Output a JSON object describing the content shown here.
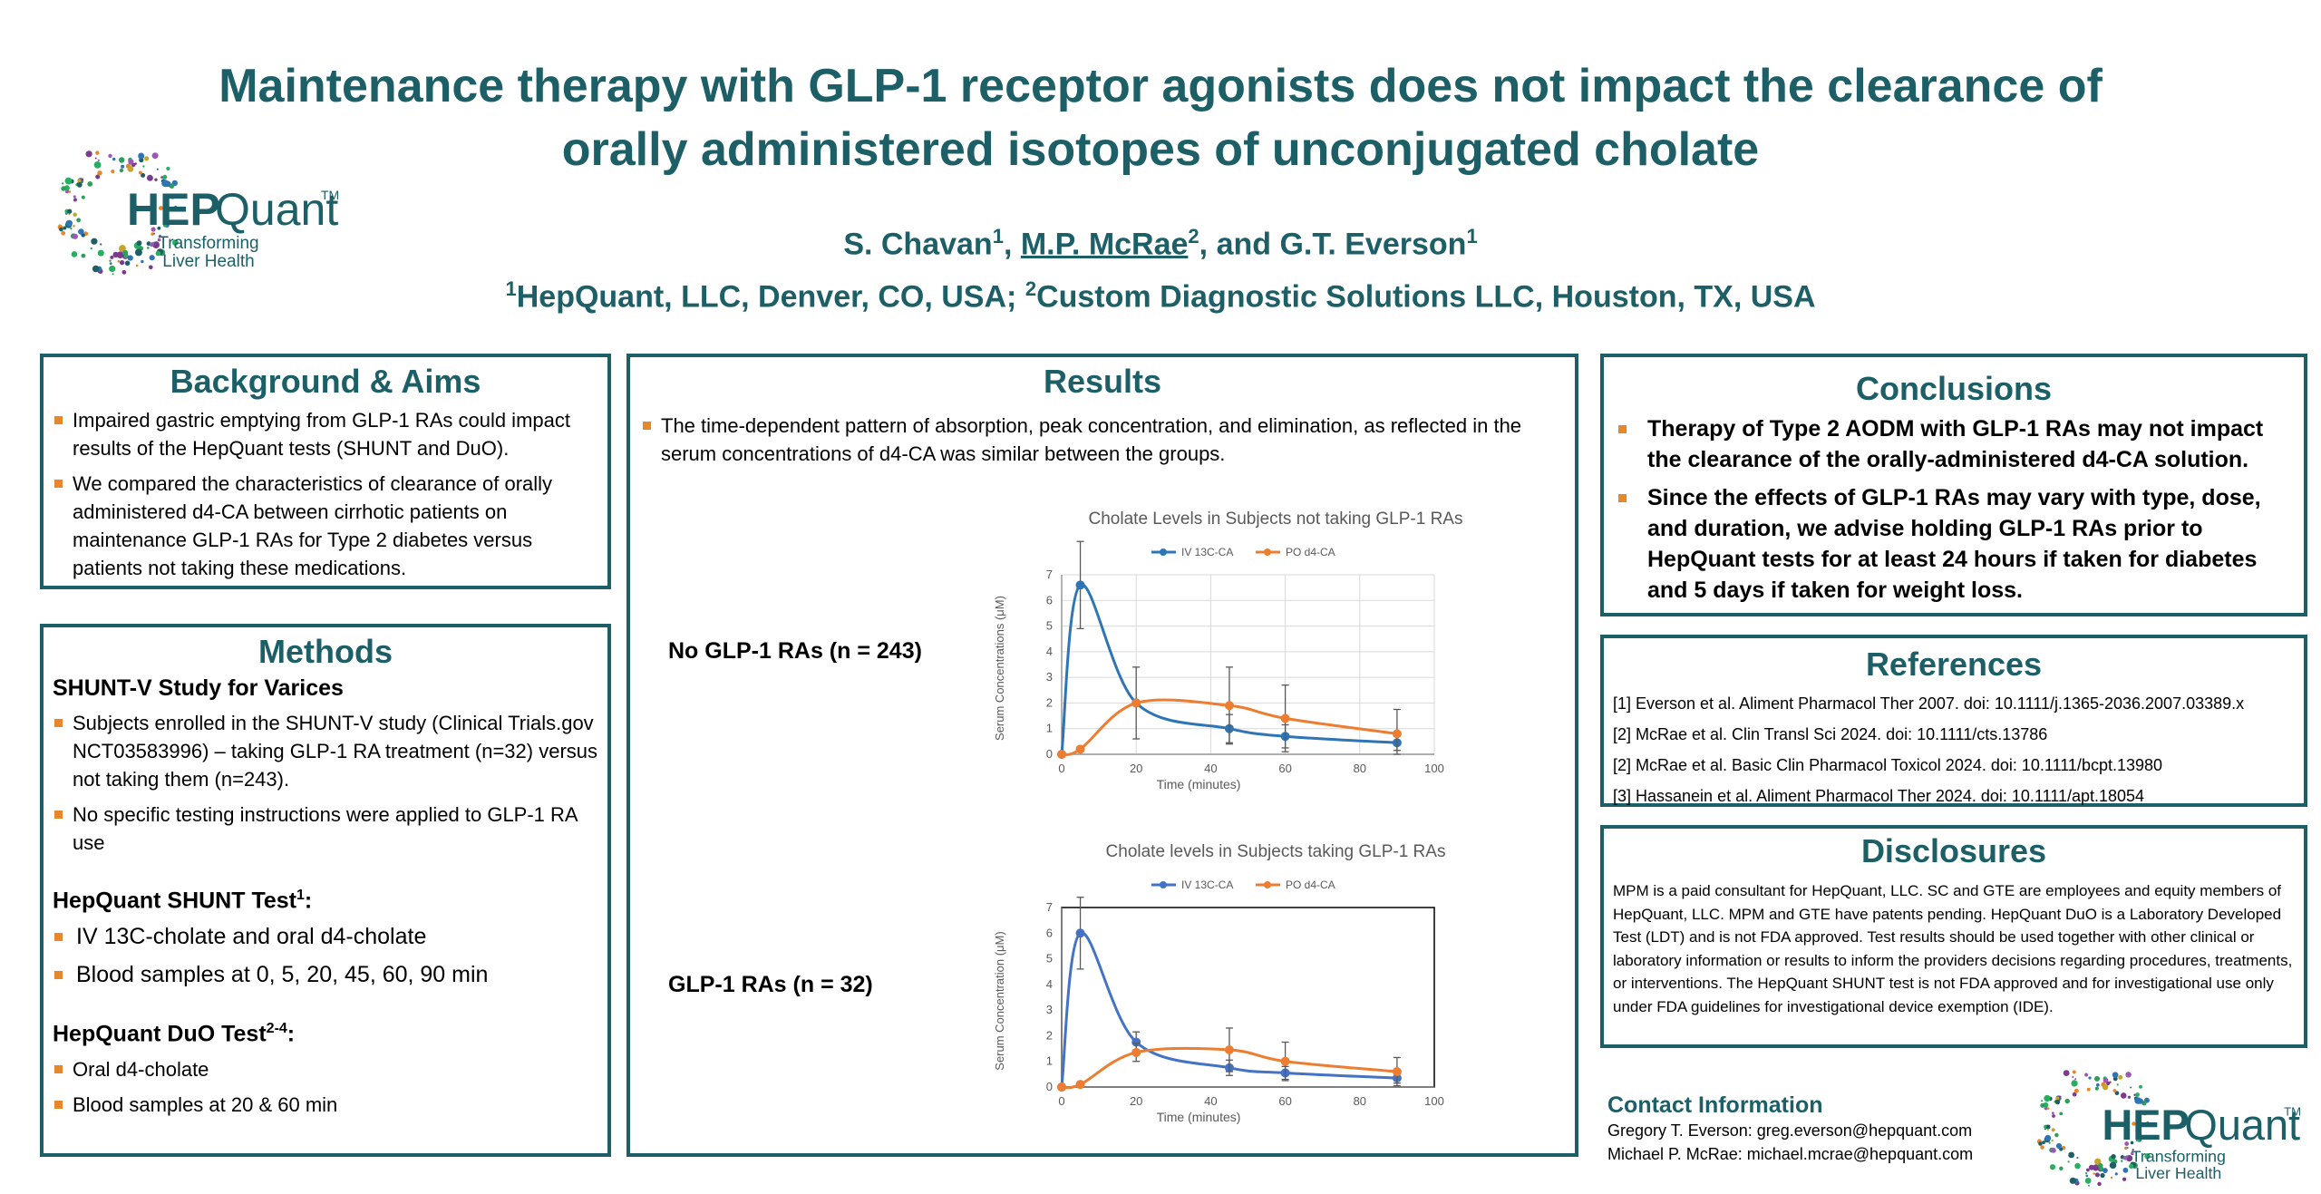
{
  "header": {
    "title_line1": "Maintenance therapy with GLP-1 receptor agonists does not impact the clearance of",
    "title_line2": "orally administered isotopes of unconjugated cholate",
    "author1": "S. Chavan",
    "author1_sup": "1",
    "sep1": ", ",
    "author2": "M.P. McRae",
    "author2_sup": "2",
    "sep2": ", and ",
    "author3": "G.T. Everson",
    "author3_sup": "1",
    "aff1_sup": "1",
    "aff1": "HepQuant, LLC, Denver, CO, USA; ",
    "aff2_sup": "2",
    "aff2": "Custom Diagnostic Solutions LLC, Houston, TX, USA"
  },
  "logo": {
    "name_part1": "HEP",
    "name_part2": "Quant",
    "tm": "TM",
    "tag1": "Transforming",
    "tag2": "Liver Health"
  },
  "background": {
    "title": "Background & Aims",
    "bullets": [
      "Impaired gastric emptying from GLP-1 RAs could impact results of the HepQuant tests (SHUNT and DuO).",
      "We compared the characteristics of clearance of orally administered d4-CA between cirrhotic patients on maintenance GLP-1 RAs for Type 2 diabetes versus patients not taking these medications."
    ]
  },
  "methods": {
    "title": "Methods",
    "study_head": "SHUNT-V Study for Varices",
    "study_bullets": [
      "Subjects enrolled in the SHUNT-V study (Clinical Trials.gov NCT03583996) – taking GLP-1 RA treatment (n=32) versus not taking them (n=243).",
      "No specific testing instructions were applied to GLP-1 RA use"
    ],
    "shunt_head": "HepQuant SHUNT Test",
    "shunt_sup": "1",
    "shunt_colon": ":",
    "shunt_bullets": [
      "IV 13C-cholate and oral d4-cholate",
      "Blood samples at 0, 5, 20, 45, 60, 90 min"
    ],
    "duo_head": "HepQuant DuO Test",
    "duo_sup": "2-4",
    "duo_colon": ":",
    "duo_bullets": [
      "Oral d4-cholate",
      "Blood samples at 20 & 60 min"
    ]
  },
  "results": {
    "title": "Results",
    "bullet": "The time-dependent pattern of absorption, peak concentration, and elimination, as reflected in the serum concentrations of d4-CA was similar between the groups.",
    "group1_label": "No GLP-1 RAs (n = 243)",
    "group2_label": "GLP-1 RAs (n = 32)"
  },
  "conclusions": {
    "title": "Conclusions",
    "bullets": [
      "Therapy of Type 2 AODM with GLP-1 RAs may not impact the clearance of the orally-administered d4-CA solution.",
      "Since the effects of GLP-1 RAs may vary with type, dose, and duration, we advise holding GLP-1 RAs prior to HepQuant tests for at least 24 hours if taken for diabetes and 5 days if taken for weight loss."
    ]
  },
  "references": {
    "title": "References",
    "items": [
      "[1] Everson et al. Aliment Pharmacol Ther 2007. doi: 10.1111/j.1365-2036.2007.03389.x",
      "[2] McRae et al. Clin Transl Sci 2024. doi: 10.1111/cts.13786",
      "[2] McRae et al. Basic Clin Pharmacol Toxicol 2024. doi: 10.1111/bcpt.13980",
      "[3] Hassanein et al. Aliment Pharmacol Ther 2024. doi: 10.1111/apt.18054"
    ]
  },
  "disclosures": {
    "title": "Disclosures",
    "text": "MPM is a paid consultant for HepQuant, LLC. SC and GTE are employees and equity members of HepQuant, LLC. MPM and GTE have patents pending. HepQuant DuO is a Laboratory Developed Test (LDT) and is not FDA approved. Test results should be used together with other clinical or laboratory information or results to inform the providers decisions regarding procedures, treatments, or interventions. The HepQuant SHUNT test is not FDA approved and for investigational use only under FDA guidelines for investigational device exemption (IDE)."
  },
  "contact": {
    "title": "Contact Information",
    "line1": "Gregory T. Everson: greg.everson@hepquant.com",
    "line2": "Michael P. McRae: michael.mcrae@hepquant.com"
  },
  "colors": {
    "accent": "#1c5f66",
    "bullet": "#e8862a",
    "iv": "#2e75b6",
    "po": "#ed7d31"
  },
  "chart_data": [
    {
      "type": "line",
      "title": "Cholate Levels in Subjects not taking GLP-1 RAs",
      "xlabel": "Time (minutes)",
      "ylabel": "Serum Concentrations (μM)",
      "xlim": [
        0,
        100
      ],
      "ylim": [
        0,
        7
      ],
      "xticks": [
        0,
        20,
        40,
        60,
        80,
        100
      ],
      "yticks": [
        0,
        1,
        2,
        3,
        4,
        5,
        6,
        7
      ],
      "legend": "top",
      "grid": true,
      "series": [
        {
          "name": "IV 13C-CA",
          "x": [
            0,
            5,
            20,
            45,
            60,
            90
          ],
          "y": [
            0,
            6.6,
            2.0,
            1.0,
            0.7,
            0.45
          ],
          "err": [
            0,
            1.7,
            0,
            0.55,
            0.45,
            0.3
          ]
        },
        {
          "name": "PO d4-CA",
          "x": [
            0,
            5,
            20,
            45,
            60,
            90
          ],
          "y": [
            0,
            0.2,
            2.0,
            1.9,
            1.4,
            0.8
          ],
          "err": [
            0,
            0.1,
            1.4,
            1.5,
            1.3,
            0.95
          ]
        }
      ]
    },
    {
      "type": "line",
      "title": "Cholate levels in Subjects taking GLP-1 RAs",
      "xlabel": "Time (minutes)",
      "ylabel": "Serum Concentration (μM)",
      "xlim": [
        0,
        100
      ],
      "ylim": [
        0,
        7
      ],
      "xticks": [
        0,
        20,
        40,
        60,
        80,
        100
      ],
      "yticks": [
        0,
        1,
        2,
        3,
        4,
        5,
        6,
        7
      ],
      "legend": "top",
      "grid": false,
      "series": [
        {
          "name": "IV 13C-CA",
          "x": [
            0,
            5,
            20,
            45,
            60,
            90
          ],
          "y": [
            0,
            6.0,
            1.75,
            0.75,
            0.55,
            0.35
          ],
          "err": [
            0,
            1.4,
            0.4,
            0.3,
            0.25,
            0.2
          ]
        },
        {
          "name": "PO d4-CA",
          "x": [
            0,
            5,
            20,
            45,
            60,
            90
          ],
          "y": [
            0,
            0.1,
            1.35,
            1.45,
            1.0,
            0.6
          ],
          "err": [
            0,
            0.05,
            0.35,
            0.85,
            0.75,
            0.55
          ]
        }
      ]
    }
  ]
}
